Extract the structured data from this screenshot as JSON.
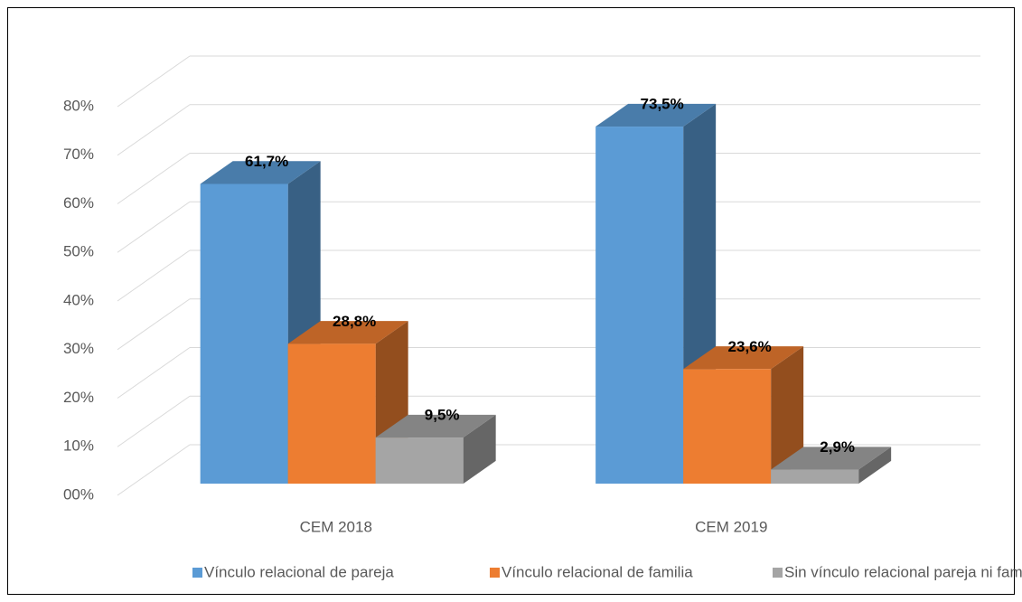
{
  "chart_data": {
    "type": "bar3d",
    "categories": [
      "CEM 2018",
      "CEM 2019"
    ],
    "series": [
      {
        "name": "Vínculo relacional de pareja",
        "color": "#5b9bd5",
        "values": [
          61.7,
          73.5
        ],
        "value_labels": [
          "61,7%",
          "73,5%"
        ]
      },
      {
        "name": "Vínculo relacional de familia",
        "color": "#ed7d31",
        "values": [
          28.8,
          23.6
        ],
        "value_labels": [
          "28,8%",
          "23,6%"
        ]
      },
      {
        "name": "Sin vínculo relacional pareja ni familia",
        "color": "#a5a5a5",
        "values": [
          9.5,
          2.9
        ],
        "value_labels": [
          "9,5%",
          "2,9%"
        ]
      }
    ],
    "ylim": [
      0,
      80
    ],
    "yticks": [
      {
        "value": 0,
        "label": "00%"
      },
      {
        "value": 10,
        "label": "10%"
      },
      {
        "value": 20,
        "label": "20%"
      },
      {
        "value": 30,
        "label": "30%"
      },
      {
        "value": 40,
        "label": "40%"
      },
      {
        "value": 50,
        "label": "50%"
      },
      {
        "value": 60,
        "label": "60%"
      },
      {
        "value": 70,
        "label": "70%"
      },
      {
        "value": 80,
        "label": "80%"
      }
    ],
    "grid": true,
    "legend": "bottom"
  }
}
